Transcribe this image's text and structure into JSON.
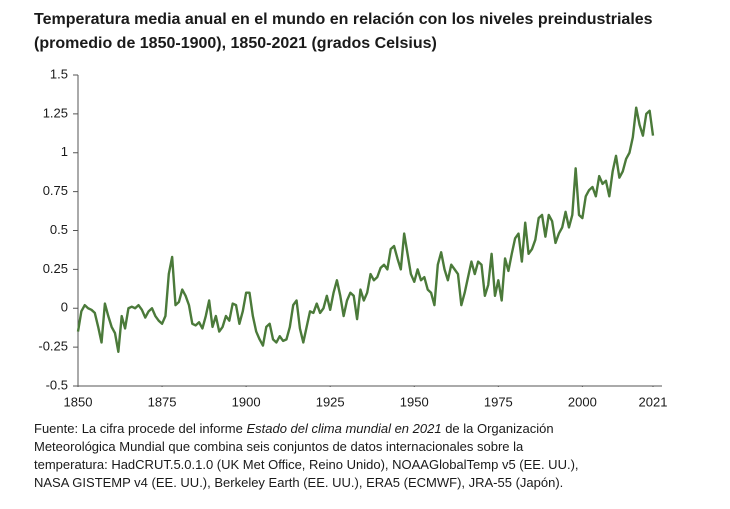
{
  "chart_data": {
    "type": "line",
    "title": [
      "Temperatura media anual en el mundo en relación con los niveles preindustriales",
      "(promedio de 1850-1900), 1850-2021 (grados Celsius)"
    ],
    "note": [
      "Fuente: La cifra procede del informe ",
      "Estado del clima mundial en 2021",
      " de la Organización",
      "Meteorológica Mundial que combina seis conjuntos de datos internacionales sobre la",
      "temperatura: HadCRUT.5.0.1.0 (UK Met Office, Reino Unido), NOAAGlobalTemp v5 (EE. UU.),",
      "NASA GISTEMP v4 (EE. UU.), Berkeley Earth (EE. UU.), ERA5 (ECMWF), JRA-55 (Japón)."
    ],
    "color": "#4b7a3a",
    "xlim": [
      1850,
      2021
    ],
    "xticks": [
      1850,
      1875,
      1900,
      1925,
      1950,
      1975,
      2000,
      2021
    ],
    "ylim": [
      -0.5,
      1.5
    ],
    "yticks": [
      -0.5,
      -0.25,
      0,
      0.25,
      0.5,
      0.75,
      1,
      1.25,
      1.5
    ],
    "x": [
      1850,
      1851,
      1852,
      1853,
      1854,
      1855,
      1856,
      1857,
      1858,
      1859,
      1860,
      1861,
      1862,
      1863,
      1864,
      1865,
      1866,
      1867,
      1868,
      1869,
      1870,
      1871,
      1872,
      1873,
      1874,
      1875,
      1876,
      1877,
      1878,
      1879,
      1880,
      1881,
      1882,
      1883,
      1884,
      1885,
      1886,
      1887,
      1888,
      1889,
      1890,
      1891,
      1892,
      1893,
      1894,
      1895,
      1896,
      1897,
      1898,
      1899,
      1900,
      1901,
      1902,
      1903,
      1904,
      1905,
      1906,
      1907,
      1908,
      1909,
      1910,
      1911,
      1912,
      1913,
      1914,
      1915,
      1916,
      1917,
      1918,
      1919,
      1920,
      1921,
      1922,
      1923,
      1924,
      1925,
      1926,
      1927,
      1928,
      1929,
      1930,
      1931,
      1932,
      1933,
      1934,
      1935,
      1936,
      1937,
      1938,
      1939,
      1940,
      1941,
      1942,
      1943,
      1944,
      1945,
      1946,
      1947,
      1948,
      1949,
      1950,
      1951,
      1952,
      1953,
      1954,
      1955,
      1956,
      1957,
      1958,
      1959,
      1960,
      1961,
      1962,
      1963,
      1964,
      1965,
      1966,
      1967,
      1968,
      1969,
      1970,
      1971,
      1972,
      1973,
      1974,
      1975,
      1976,
      1977,
      1978,
      1979,
      1980,
      1981,
      1982,
      1983,
      1984,
      1985,
      1986,
      1987,
      1988,
      1989,
      1990,
      1991,
      1992,
      1993,
      1994,
      1995,
      1996,
      1997,
      1998,
      1999,
      2000,
      2001,
      2002,
      2003,
      2004,
      2005,
      2006,
      2007,
      2008,
      2009,
      2010,
      2011,
      2012,
      2013,
      2014,
      2015,
      2016,
      2017,
      2018,
      2019,
      2020,
      2021
    ],
    "values": [
      -0.15,
      -0.02,
      0.02,
      0.0,
      -0.01,
      -0.03,
      -0.12,
      -0.22,
      0.03,
      -0.05,
      -0.12,
      -0.16,
      -0.28,
      -0.05,
      -0.13,
      0.0,
      0.01,
      0.0,
      0.02,
      -0.01,
      -0.06,
      -0.02,
      0.0,
      -0.05,
      -0.08,
      -0.1,
      -0.05,
      0.22,
      0.33,
      0.02,
      0.04,
      0.12,
      0.08,
      0.02,
      -0.1,
      -0.11,
      -0.09,
      -0.13,
      -0.05,
      0.05,
      -0.12,
      -0.05,
      -0.15,
      -0.12,
      -0.05,
      -0.08,
      0.03,
      0.02,
      -0.1,
      -0.02,
      0.1,
      0.1,
      -0.05,
      -0.15,
      -0.2,
      -0.24,
      -0.12,
      -0.1,
      -0.2,
      -0.22,
      -0.18,
      -0.21,
      -0.2,
      -0.12,
      0.02,
      0.05,
      -0.13,
      -0.22,
      -0.12,
      -0.02,
      -0.03,
      0.03,
      -0.03,
      0.0,
      0.08,
      -0.01,
      0.1,
      0.18,
      0.08,
      -0.05,
      0.05,
      0.1,
      0.08,
      -0.07,
      0.12,
      0.05,
      0.1,
      0.22,
      0.18,
      0.2,
      0.26,
      0.28,
      0.25,
      0.38,
      0.4,
      0.32,
      0.25,
      0.48,
      0.35,
      0.22,
      0.17,
      0.25,
      0.18,
      0.2,
      0.12,
      0.1,
      0.02,
      0.28,
      0.36,
      0.25,
      0.18,
      0.28,
      0.25,
      0.22,
      0.02,
      0.1,
      0.2,
      0.3,
      0.22,
      0.3,
      0.28,
      0.08,
      0.15,
      0.35,
      0.08,
      0.18,
      0.05,
      0.32,
      0.24,
      0.35,
      0.45,
      0.48,
      0.3,
      0.55,
      0.35,
      0.38,
      0.44,
      0.58,
      0.6,
      0.46,
      0.6,
      0.56,
      0.42,
      0.48,
      0.52,
      0.62,
      0.52,
      0.6,
      0.9,
      0.6,
      0.58,
      0.72,
      0.76,
      0.78,
      0.72,
      0.85,
      0.8,
      0.82,
      0.72,
      0.88,
      0.98,
      0.84,
      0.88,
      0.96,
      1.0,
      1.1,
      1.29,
      1.18,
      1.11,
      1.25,
      1.27,
      1.11
    ]
  }
}
